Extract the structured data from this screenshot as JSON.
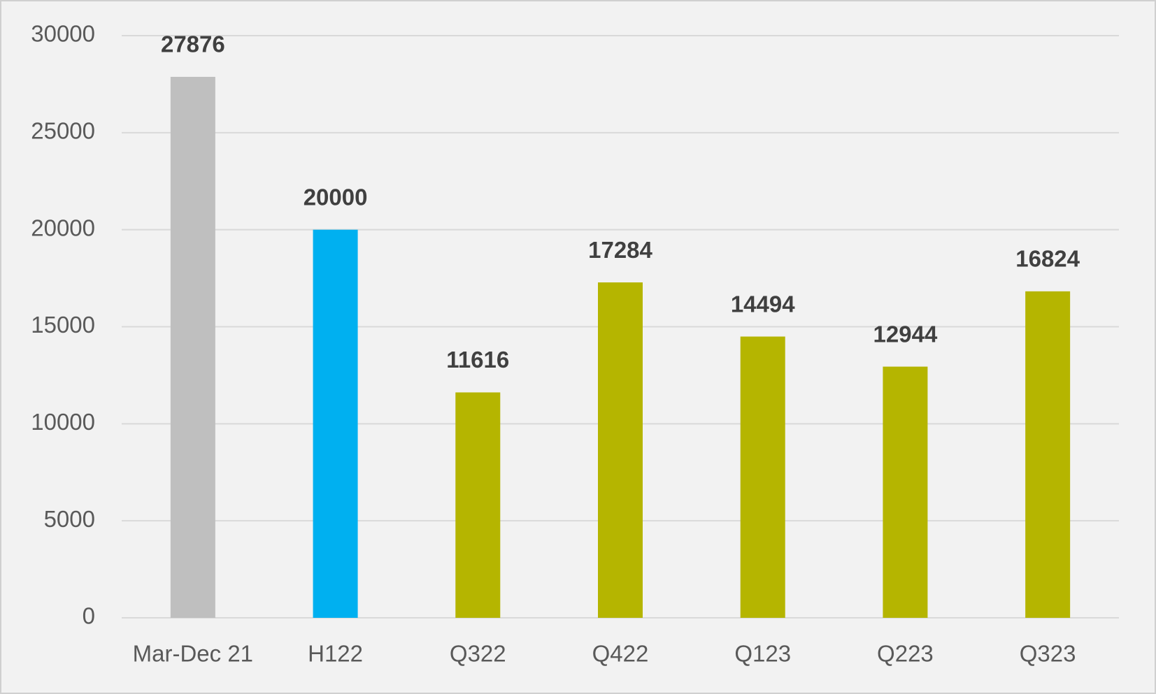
{
  "chart_data": {
    "type": "bar",
    "categories": [
      "Mar-Dec 21",
      "H122",
      "Q322",
      "Q422",
      "Q123",
      "Q223",
      "Q323"
    ],
    "values": [
      27876,
      20000,
      11616,
      17284,
      14494,
      12944,
      16824
    ],
    "colors": [
      "#bfbfbf",
      "#00b0f0",
      "#b5b500",
      "#b5b500",
      "#b5b500",
      "#b5b500",
      "#b5b500"
    ],
    "ylim": [
      0,
      30000
    ],
    "yticks": [
      0,
      5000,
      10000,
      15000,
      20000,
      25000,
      30000
    ],
    "grid": true,
    "data_labels": true
  }
}
